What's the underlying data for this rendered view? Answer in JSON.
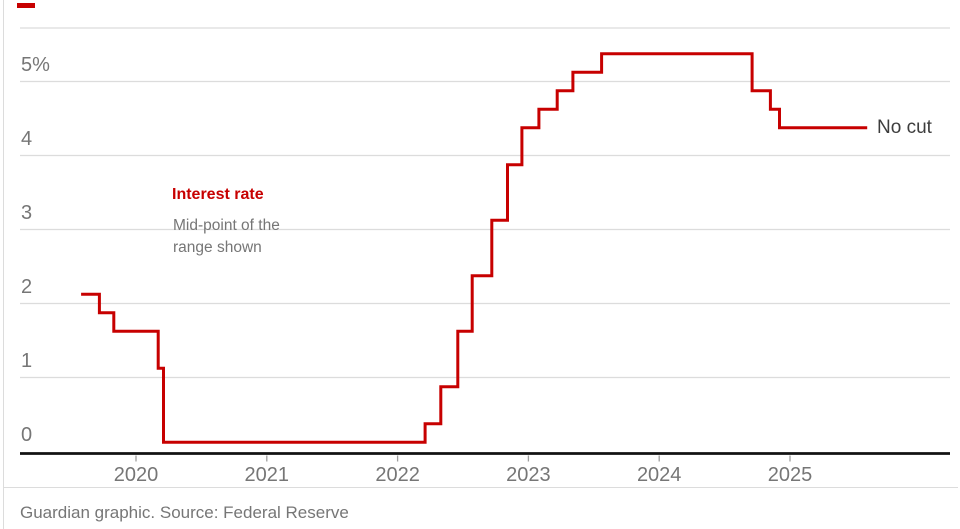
{
  "chart_data": {
    "type": "line",
    "subtype": "step",
    "title": "Interest rate",
    "subtitle": "Mid-point of the range shown",
    "subtitle_lines": [
      "Mid-point of the",
      "range shown"
    ],
    "end_label": "No cut",
    "footer": "Guardian graphic. Source: Federal Reserve",
    "legend_position": "none",
    "grid": true,
    "xlim": [
      2019.11,
      2026.22
    ],
    "ylim": [
      0,
      5.72
    ],
    "y_ticks": [
      {
        "label": "5%",
        "value": 5
      },
      {
        "label": "4",
        "value": 4
      },
      {
        "label": "3",
        "value": 3
      },
      {
        "label": "2",
        "value": 2
      },
      {
        "label": "1",
        "value": 1
      },
      {
        "label": "0",
        "value": 0
      }
    ],
    "x_ticks": [
      {
        "label": "2020",
        "year": 2020
      },
      {
        "label": "2021",
        "year": 2021
      },
      {
        "label": "2022",
        "year": 2022
      },
      {
        "label": "2023",
        "year": 2023
      },
      {
        "label": "2024",
        "year": 2024
      },
      {
        "label": "2025",
        "year": 2025
      }
    ],
    "series": [
      {
        "name": "Interest rate (mid-point of range)",
        "end_t": 2025.59,
        "steps": [
          {
            "t": 2019.58,
            "v": 2.125
          },
          {
            "t": 2019.72,
            "v": 1.875
          },
          {
            "t": 2019.83,
            "v": 1.625
          },
          {
            "t": 2020.17,
            "v": 1.125
          },
          {
            "t": 2020.21,
            "v": 0.125
          },
          {
            "t": 2022.21,
            "v": 0.375
          },
          {
            "t": 2022.33,
            "v": 0.875
          },
          {
            "t": 2022.46,
            "v": 1.625
          },
          {
            "t": 2022.57,
            "v": 2.375
          },
          {
            "t": 2022.72,
            "v": 3.125
          },
          {
            "t": 2022.84,
            "v": 3.875
          },
          {
            "t": 2022.95,
            "v": 4.375
          },
          {
            "t": 2023.08,
            "v": 4.625
          },
          {
            "t": 2023.22,
            "v": 4.875
          },
          {
            "t": 2023.34,
            "v": 5.125
          },
          {
            "t": 2023.56,
            "v": 5.375
          },
          {
            "t": 2024.71,
            "v": 4.875
          },
          {
            "t": 2024.85,
            "v": 4.625
          },
          {
            "t": 2024.92,
            "v": 4.375
          }
        ]
      }
    ],
    "colors": {
      "accent": "#c70000",
      "grid": "#dcdcdc",
      "axis": "#121212",
      "tick": "#9e9e9e",
      "text_gray": "#767676",
      "end_label_text": "#3d3d3d",
      "background": "#ffffff"
    }
  }
}
